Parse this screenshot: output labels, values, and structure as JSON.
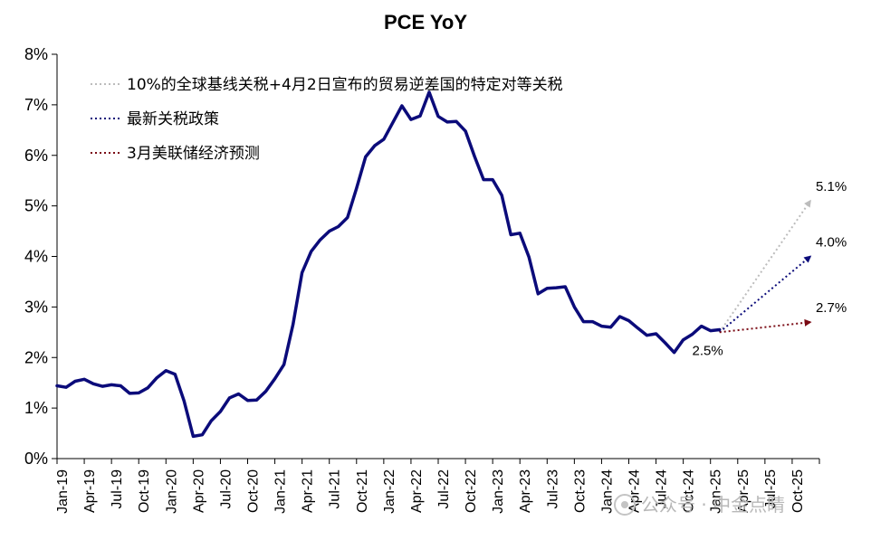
{
  "chart_data": {
    "type": "line",
    "title": "PCE YoY",
    "xlabel": "",
    "ylabel": "",
    "ylim": [
      0,
      8
    ],
    "yticks": [
      "0%",
      "1%",
      "2%",
      "3%",
      "4%",
      "5%",
      "6%",
      "7%",
      "8%"
    ],
    "x_tick_labels": [
      "Jan-19",
      "Apr-19",
      "Jul-19",
      "Oct-19",
      "Jan-20",
      "Apr-20",
      "Jul-20",
      "Oct-20",
      "Jan-21",
      "Apr-21",
      "Jul-21",
      "Oct-21",
      "Jan-22",
      "Apr-22",
      "Jul-22",
      "Oct-22",
      "Jan-23",
      "Apr-23",
      "Jul-23",
      "Oct-23",
      "Jan-24",
      "Apr-24",
      "Jul-24",
      "Oct-24",
      "Jan-25",
      "Apr-25",
      "Jul-25",
      "Oct-25"
    ],
    "x_start": "Jan-19",
    "x_end": "Dec-25",
    "grid": false,
    "legend_position": "top-left",
    "series": [
      {
        "type": "line",
        "color": "#0b0b7a",
        "values": [
          1.44,
          1.41,
          1.53,
          1.57,
          1.48,
          1.43,
          1.46,
          1.44,
          1.29,
          1.3,
          1.4,
          1.6,
          1.74,
          1.67,
          1.14,
          0.44,
          0.47,
          0.75,
          0.93,
          1.2,
          1.28,
          1.15,
          1.16,
          1.33,
          1.58,
          1.86,
          2.65,
          3.68,
          4.1,
          4.33,
          4.5,
          4.59,
          4.77,
          5.35,
          5.97,
          6.19,
          6.32,
          6.65,
          6.98,
          6.71,
          6.78,
          7.25,
          6.77,
          6.66,
          6.67,
          6.48,
          5.98,
          5.52,
          5.52,
          5.21,
          4.43,
          4.46,
          3.99,
          3.26,
          3.37,
          3.38,
          3.4,
          3.0,
          2.71,
          2.71,
          2.62,
          2.6,
          2.81,
          2.73,
          2.58,
          2.44,
          2.47,
          2.29,
          2.1,
          2.35,
          2.46,
          2.62,
          2.53,
          2.55
        ]
      }
    ],
    "projections": [
      {
        "name": "10%的全球基线关税+4月2日宣布的贸易逆差国的特定对等关税",
        "color": "#bcbcbc",
        "from": [
          "Feb-25",
          2.5
        ],
        "to": [
          "Dec-25",
          5.1
        ],
        "label": "5.1%"
      },
      {
        "name": "最新关税政策",
        "color": "#0b0b7a",
        "from": [
          "Feb-25",
          2.5
        ],
        "to": [
          "Dec-25",
          4.0
        ],
        "label": "4.0%"
      },
      {
        "name": "3月美联储经济预测",
        "color": "#7a0a14",
        "from": [
          "Feb-25",
          2.5
        ],
        "to": [
          "Dec-25",
          2.7
        ],
        "label": "2.7%"
      }
    ],
    "annotations": [
      {
        "text": "2.5%",
        "x": "Feb-25",
        "y": 2.5
      }
    ]
  },
  "watermark": {
    "text": "公众号 · 中金点睛"
  }
}
